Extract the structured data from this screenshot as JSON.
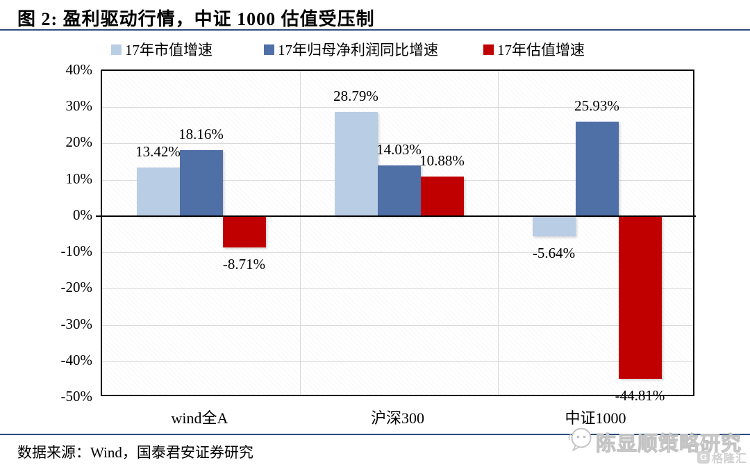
{
  "title": "图 2:  盈利驱动行情，中证 1000 估值受压制",
  "source": "数据来源：Wind，国泰君安证券研究",
  "watermark": {
    "text": "陈显顺策略研究",
    "icon": "wechat-bubble-icon",
    "logo_icon_letter": "G",
    "logo_text": "格隆汇"
  },
  "colors": {
    "rule_blue": "#2b4a7d",
    "gridline_gray": "#d9d9d9",
    "axis_black": "#000000",
    "watermark_gray": "#c3c3c3",
    "series_light_blue": "#b9cde5",
    "series_dark_blue": "#4f6fa7",
    "series_red": "#c00000"
  },
  "chart_data": {
    "type": "bar",
    "title": "图 2:  盈利驱动行情，中证 1000 估值受压制",
    "xlabel": "",
    "ylabel": "",
    "categories": [
      "wind全A",
      "沪深300",
      "中证1000"
    ],
    "series": [
      {
        "name": "17年市值增速",
        "color": "#b9cde5",
        "values": [
          13.42,
          28.79,
          -5.64
        ],
        "labels": [
          "13.42%",
          "28.79%",
          "-5.64%"
        ]
      },
      {
        "name": "17年归母净利润同比增速",
        "color": "#4f6fa7",
        "values": [
          18.16,
          14.03,
          25.93
        ],
        "labels": [
          "18.16%",
          "14.03%",
          "25.93%"
        ]
      },
      {
        "name": "17年估值增速",
        "color": "#c00000",
        "values": [
          -8.71,
          10.88,
          -44.81
        ],
        "labels": [
          "-8.71%",
          "10.88%",
          "-44.81%"
        ]
      }
    ],
    "ylim": [
      -50,
      40
    ],
    "ytick_step": 10,
    "ytick_labels": [
      "40%",
      "30%",
      "20%",
      "10%",
      "0%",
      "-10%",
      "-20%",
      "-30%",
      "-40%",
      "-50%"
    ],
    "grid": true,
    "legend_position": "top"
  }
}
